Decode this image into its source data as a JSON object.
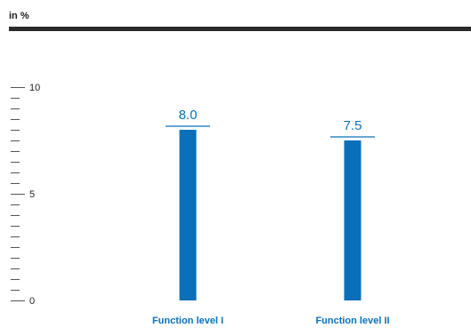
{
  "unit_label": "in %",
  "chart_data": {
    "type": "bar",
    "categories": [
      "Function level I",
      "Function level II"
    ],
    "values": [
      8.0,
      7.5
    ],
    "value_labels": [
      "8.0",
      "7.5"
    ],
    "title": "",
    "xlabel": "",
    "ylabel": "in %",
    "ylim": [
      0,
      10
    ],
    "yticks": [
      {
        "value": 0,
        "label": "0"
      },
      {
        "value": 5,
        "label": "5"
      },
      {
        "value": 10,
        "label": "10"
      }
    ],
    "minor_tick_step": 0.5,
    "grid": false,
    "legend": "none",
    "bar_color": "#0a70b9",
    "label_color": "#0a70b9"
  }
}
